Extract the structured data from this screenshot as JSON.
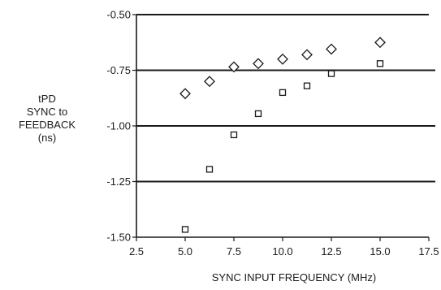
{
  "chart_data": {
    "type": "scatter",
    "title": "",
    "xlabel": "SYNC INPUT FREQUENCY (MHz)",
    "ylabel_lines": [
      "tPD",
      "SYNC to",
      "FEEDBACK",
      "(ns)"
    ],
    "xlim": [
      2.5,
      17.5
    ],
    "ylim": [
      -1.5,
      -0.5
    ],
    "x_ticks": [
      "2.5",
      "5.0",
      "7.5",
      "10.0",
      "12.5",
      "15.0",
      "17.5"
    ],
    "y_ticks": [
      "-0.50",
      "-0.75",
      "-1.00",
      "-1.25",
      "-1.50"
    ],
    "y_tick_values": [
      -0.5,
      -0.75,
      -1.0,
      -1.25,
      -1.5
    ],
    "x_tick_values": [
      2.5,
      5.0,
      7.5,
      10.0,
      12.5,
      15.0,
      17.5
    ],
    "grid_lines_y": [
      -0.75,
      -1.0,
      -1.25
    ],
    "series": [
      {
        "marker": "diamond",
        "x": [
          5.0,
          6.25,
          7.5,
          8.75,
          10.0,
          11.25,
          12.5,
          15.0
        ],
        "y": [
          -0.855,
          -0.8,
          -0.735,
          -0.72,
          -0.7,
          -0.68,
          -0.655,
          -0.625
        ]
      },
      {
        "marker": "square",
        "x": [
          5.0,
          6.25,
          7.5,
          8.75,
          10.0,
          11.25,
          12.5,
          15.0
        ],
        "y": [
          -1.465,
          -1.195,
          -1.04,
          -0.945,
          -0.85,
          -0.82,
          -0.765,
          -0.72
        ]
      }
    ]
  }
}
